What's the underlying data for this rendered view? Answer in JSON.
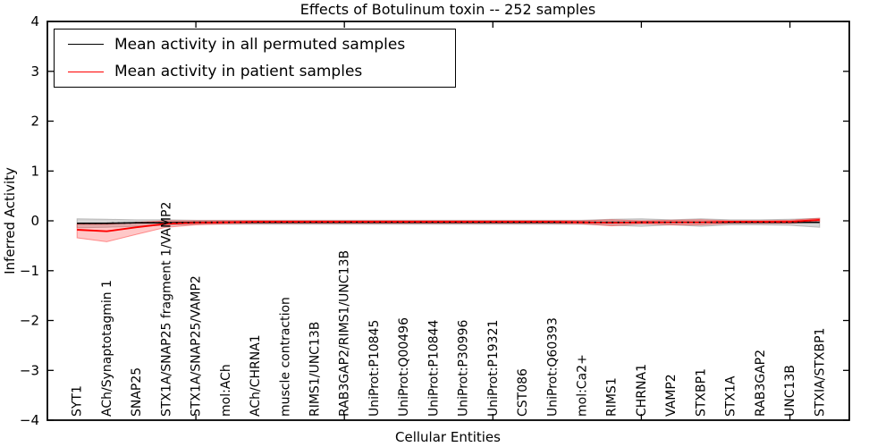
{
  "title": "Effects of Botulinum toxin -- 252 samples",
  "legend": {
    "items": [
      {
        "label": "Mean activity in all permuted samples",
        "color": "#000000"
      },
      {
        "label": "Mean activity in patient samples",
        "color": "#ff0000"
      }
    ]
  },
  "chart_data": {
    "type": "line",
    "title": "Effects of Botulinum toxin -- 252 samples",
    "xlabel": "Cellular Entities",
    "ylabel": "Inferred Activity",
    "xlim": [
      0,
      27
    ],
    "ylim": [
      -4,
      4
    ],
    "yticks": [
      -4,
      -3,
      -2,
      -1,
      0,
      1,
      2,
      3,
      4
    ],
    "xticks_major": [
      5,
      10,
      15,
      20,
      25
    ],
    "grid": false,
    "legend_position": "upper left",
    "categories": [
      "SYT1",
      "ACh/Synaptotagmin 1",
      "SNAP25",
      "STX1A/SNAP25 fragment 1/VAMP2",
      "STX1A/SNAP25/VAMP2",
      "mol:ACh",
      "ACh/CHRNA1",
      "muscle contraction",
      "RIMS1/UNC13B",
      "RAB3GAP2/RIMS1/UNC13B",
      "UniProt:P10845",
      "UniProt:Q00496",
      "UniProt:P10844",
      "UniProt:P30996",
      "UniProt:P19321",
      "CST086",
      "UniProt:Q60393",
      "mol:Ca2+",
      "RIMS1",
      "CHRNA1",
      "VAMP2",
      "STXBP1",
      "STX1A",
      "RAB3GAP2",
      "UNC13B",
      "STXIA/STXBP1"
    ],
    "x": [
      1,
      2,
      3,
      4,
      5,
      6,
      7,
      8,
      9,
      10,
      11,
      12,
      13,
      14,
      15,
      16,
      17,
      18,
      19,
      20,
      21,
      22,
      23,
      24,
      25,
      26
    ],
    "series": [
      {
        "name": "Mean activity in all permuted samples",
        "color": "#000000",
        "band_color": "#999999",
        "band_opacity": 0.4,
        "overlay_dash": true,
        "values": [
          -0.05,
          -0.05,
          -0.04,
          -0.04,
          -0.03,
          -0.03,
          -0.03,
          -0.03,
          -0.03,
          -0.03,
          -0.03,
          -0.03,
          -0.03,
          -0.03,
          -0.03,
          -0.03,
          -0.03,
          -0.03,
          -0.03,
          -0.03,
          -0.03,
          -0.03,
          -0.03,
          -0.03,
          -0.03,
          -0.03
        ],
        "band_upper": [
          0.04,
          0.03,
          0.02,
          0.02,
          0.01,
          0.01,
          0.01,
          0.01,
          0.01,
          0.01,
          0.01,
          0.01,
          0.01,
          0.01,
          0.01,
          0.01,
          0.01,
          0.01,
          0.03,
          0.04,
          0.02,
          0.04,
          0.02,
          0.02,
          0.03,
          0.05
        ],
        "band_lower": [
          -0.14,
          -0.13,
          -0.11,
          -0.09,
          -0.07,
          -0.07,
          -0.07,
          -0.07,
          -0.07,
          -0.07,
          -0.07,
          -0.07,
          -0.07,
          -0.07,
          -0.07,
          -0.07,
          -0.07,
          -0.07,
          -0.09,
          -0.11,
          -0.08,
          -0.11,
          -0.08,
          -0.08,
          -0.09,
          -0.13
        ]
      },
      {
        "name": "Mean activity in patient samples",
        "color": "#ff0000",
        "band_color": "#ff2222",
        "band_opacity": 0.25,
        "overlay_dash": false,
        "values": [
          -0.18,
          -0.21,
          -0.13,
          -0.06,
          -0.04,
          -0.03,
          -0.02,
          -0.02,
          -0.02,
          -0.02,
          -0.02,
          -0.02,
          -0.02,
          -0.02,
          -0.02,
          -0.02,
          -0.02,
          -0.03,
          -0.04,
          -0.03,
          -0.03,
          -0.03,
          -0.02,
          -0.02,
          -0.02,
          0.02
        ],
        "band_upper": [
          -0.07,
          -0.07,
          -0.03,
          0.0,
          0.0,
          0.0,
          0.0,
          0.0,
          0.0,
          0.0,
          0.0,
          0.0,
          0.0,
          0.0,
          0.0,
          0.0,
          0.0,
          0.0,
          0.02,
          0.0,
          0.01,
          0.02,
          0.0,
          0.0,
          0.01,
          0.05
        ],
        "band_lower": [
          -0.34,
          -0.42,
          -0.27,
          -0.13,
          -0.08,
          -0.06,
          -0.05,
          -0.05,
          -0.05,
          -0.05,
          -0.05,
          -0.05,
          -0.05,
          -0.05,
          -0.05,
          -0.05,
          -0.05,
          -0.06,
          -0.1,
          -0.06,
          -0.08,
          -0.08,
          -0.05,
          -0.05,
          -0.05,
          -0.02
        ]
      }
    ]
  }
}
